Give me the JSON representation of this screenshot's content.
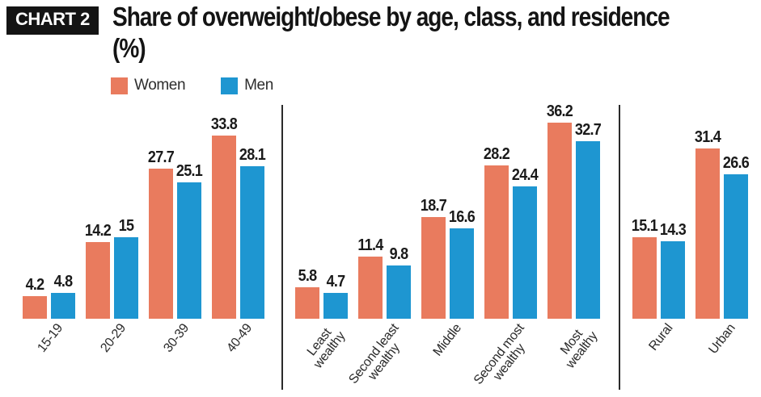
{
  "header": {
    "badge": "CHART 2"
  },
  "chart_data": {
    "type": "bar",
    "title": "Share of overweight/obese by age, class, and residence (%)",
    "xlabel": "",
    "ylabel": "",
    "ylim": [
      0,
      40
    ],
    "grid": false,
    "legend_position": "top-left",
    "value_labels_shown": true,
    "series_names": [
      "Women",
      "Men"
    ],
    "series_colors": [
      "#e97b5e",
      "#1e96d1"
    ],
    "sections": [
      {
        "name": "age",
        "categories": [
          "15-19",
          "20-29",
          "30-39",
          "40-49"
        ],
        "series": [
          {
            "name": "Women",
            "values": [
              4.2,
              14.2,
              27.7,
              33.8
            ]
          },
          {
            "name": "Men",
            "values": [
              4.8,
              15,
              25.1,
              28.1
            ]
          }
        ]
      },
      {
        "name": "class",
        "categories": [
          "Least\nwealthy",
          "Second least\nwealthy",
          "Middle",
          "Second most\nwealthy",
          "Most\nwealthy"
        ],
        "series": [
          {
            "name": "Women",
            "values": [
              5.8,
              11.4,
              18.7,
              28.2,
              36.2
            ]
          },
          {
            "name": "Men",
            "values": [
              4.7,
              9.8,
              16.6,
              24.4,
              32.7
            ]
          }
        ]
      },
      {
        "name": "residence",
        "categories": [
          "Rural",
          "Urban"
        ],
        "series": [
          {
            "name": "Women",
            "values": [
              15.1,
              31.4
            ]
          },
          {
            "name": "Men",
            "values": [
              14.3,
              26.6
            ]
          }
        ]
      }
    ]
  }
}
